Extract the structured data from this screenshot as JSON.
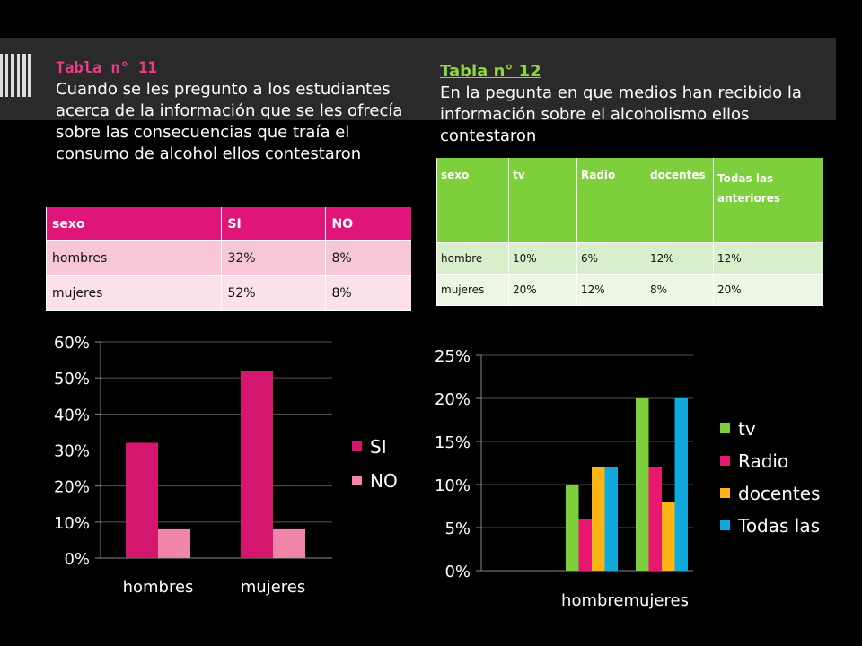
{
  "table11": {
    "heading": "Tabla n° 11",
    "description": "Cuando se les pregunto a los estudiantes acerca de la información que se les ofrecía sobre las consecuencias que traía el consumo de alcohol ellos contestaron",
    "columns": [
      "sexo",
      "SI",
      "NO"
    ],
    "rows": [
      [
        "hombres",
        "32%",
        "8%"
      ],
      [
        "mujeres",
        "52%",
        "8%"
      ]
    ]
  },
  "table12": {
    "heading": "Tabla n° 12",
    "description": "En la pegunta en que medios han recibido la información sobre el alcoholismo ellos contestaron",
    "columns": [
      "sexo",
      "tv",
      "Radio",
      "docentes",
      "Todas las anteriores"
    ],
    "rows": [
      [
        "hombre",
        "10%",
        "6%",
        "12%",
        "12%"
      ],
      [
        "mujeres",
        "20%",
        "12%",
        "8%",
        "20%"
      ]
    ]
  },
  "chart_data": [
    {
      "type": "bar",
      "categories": [
        "hombres",
        "mujeres"
      ],
      "series": [
        {
          "name": "SI",
          "values": [
            0.32,
            0.52
          ],
          "color": "#d4166f"
        },
        {
          "name": "NO",
          "values": [
            0.08,
            0.08
          ],
          "color": "#ef86a9"
        }
      ],
      "ylim": [
        0,
        0.6
      ],
      "yticks": [
        "0%",
        "10%",
        "20%",
        "30%",
        "40%",
        "50%",
        "60%"
      ],
      "grid": true,
      "legend": "right"
    },
    {
      "type": "bar",
      "categories": [
        "hombre",
        "mujeres"
      ],
      "series": [
        {
          "name": "tv",
          "values": [
            0.1,
            0.2
          ],
          "color": "#7dcf3c"
        },
        {
          "name": "Radio",
          "values": [
            0.06,
            0.12
          ],
          "color": "#e8186f"
        },
        {
          "name": "docentes",
          "values": [
            0.12,
            0.08
          ],
          "color": "#fdb515"
        },
        {
          "name": "Todas las",
          "values": [
            0.12,
            0.2
          ],
          "color": "#10a8dd"
        }
      ],
      "ylim": [
        0,
        0.25
      ],
      "yticks": [
        "0%",
        "5%",
        "10%",
        "15%",
        "20%",
        "25%"
      ],
      "grid": true,
      "legend": "right"
    }
  ]
}
